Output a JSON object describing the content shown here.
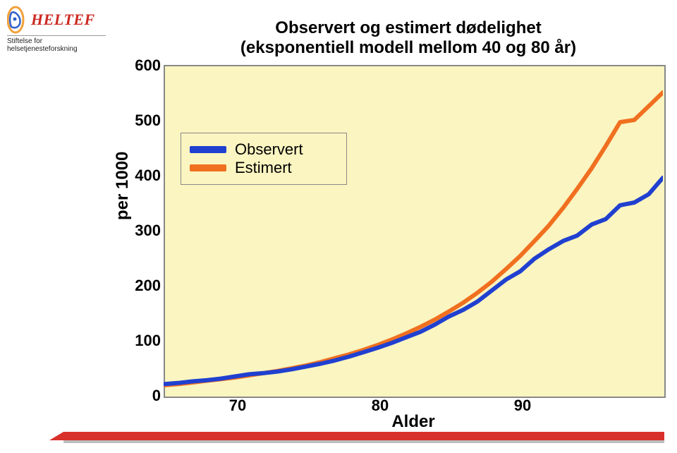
{
  "logo": {
    "brand": "HELTEF",
    "subtitle_line1": "Stiftelse for",
    "subtitle_line2": "helsetjenesteforskning",
    "brand_color": "#cc2a22",
    "emblem_outer": "#f2a03a",
    "emblem_inner": "#3060c8"
  },
  "footer_bar_color": "#d8302a",
  "chart": {
    "type": "line",
    "title_line1": "Observert og estimert dødelighet",
    "title_line2": "(eksponentiell modell mellom 40 og 80 år)",
    "title_fontsize": 24,
    "xlabel": "Alder",
    "ylabel": "per 1000",
    "label_fontsize": 24,
    "background_color": "#fbf5c1",
    "border_color": "#888888",
    "xlim": [
      65,
      100
    ],
    "ylim": [
      0,
      600
    ],
    "xticks": [
      70,
      80,
      90
    ],
    "yticks": [
      0,
      100,
      200,
      300,
      400,
      500,
      600
    ],
    "tick_fontsize": 22,
    "line_width": 6,
    "series": [
      {
        "name": "Observert",
        "color": "#2040d0",
        "x": [
          65,
          66,
          67,
          68,
          69,
          70,
          71,
          72,
          73,
          74,
          75,
          76,
          77,
          78,
          79,
          80,
          81,
          82,
          83,
          84,
          85,
          86,
          87,
          88,
          89,
          90,
          91,
          92,
          93,
          94,
          95,
          96,
          97,
          98,
          99,
          100
        ],
        "y": [
          20,
          22,
          25,
          27,
          30,
          34,
          38,
          40,
          43,
          47,
          52,
          57,
          63,
          70,
          78,
          86,
          95,
          105,
          115,
          128,
          143,
          155,
          170,
          190,
          210,
          225,
          248,
          265,
          280,
          290,
          310,
          320,
          345,
          350,
          365,
          395
        ]
      },
      {
        "name": "Estimert",
        "color": "#f07020",
        "x": [
          65,
          66,
          67,
          68,
          69,
          70,
          71,
          72,
          73,
          74,
          75,
          76,
          77,
          78,
          79,
          80,
          81,
          82,
          83,
          84,
          85,
          86,
          87,
          88,
          89,
          90,
          91,
          92,
          93,
          94,
          95,
          96,
          97,
          98,
          99,
          100
        ],
        "y": [
          18,
          20,
          23,
          26,
          29,
          32,
          36,
          40,
          44,
          49,
          54,
          60,
          67,
          74,
          82,
          91,
          101,
          112,
          124,
          137,
          152,
          168,
          186,
          206,
          229,
          253,
          280,
          308,
          340,
          375,
          412,
          453,
          496,
          500,
          525,
          550
        ]
      }
    ],
    "legend": {
      "entries": [
        "Observert",
        "Estimert"
      ],
      "position": "upper-left-inside",
      "box_border": "#888888",
      "box_bg": "#fbf5c1",
      "fontsize": 22
    }
  }
}
